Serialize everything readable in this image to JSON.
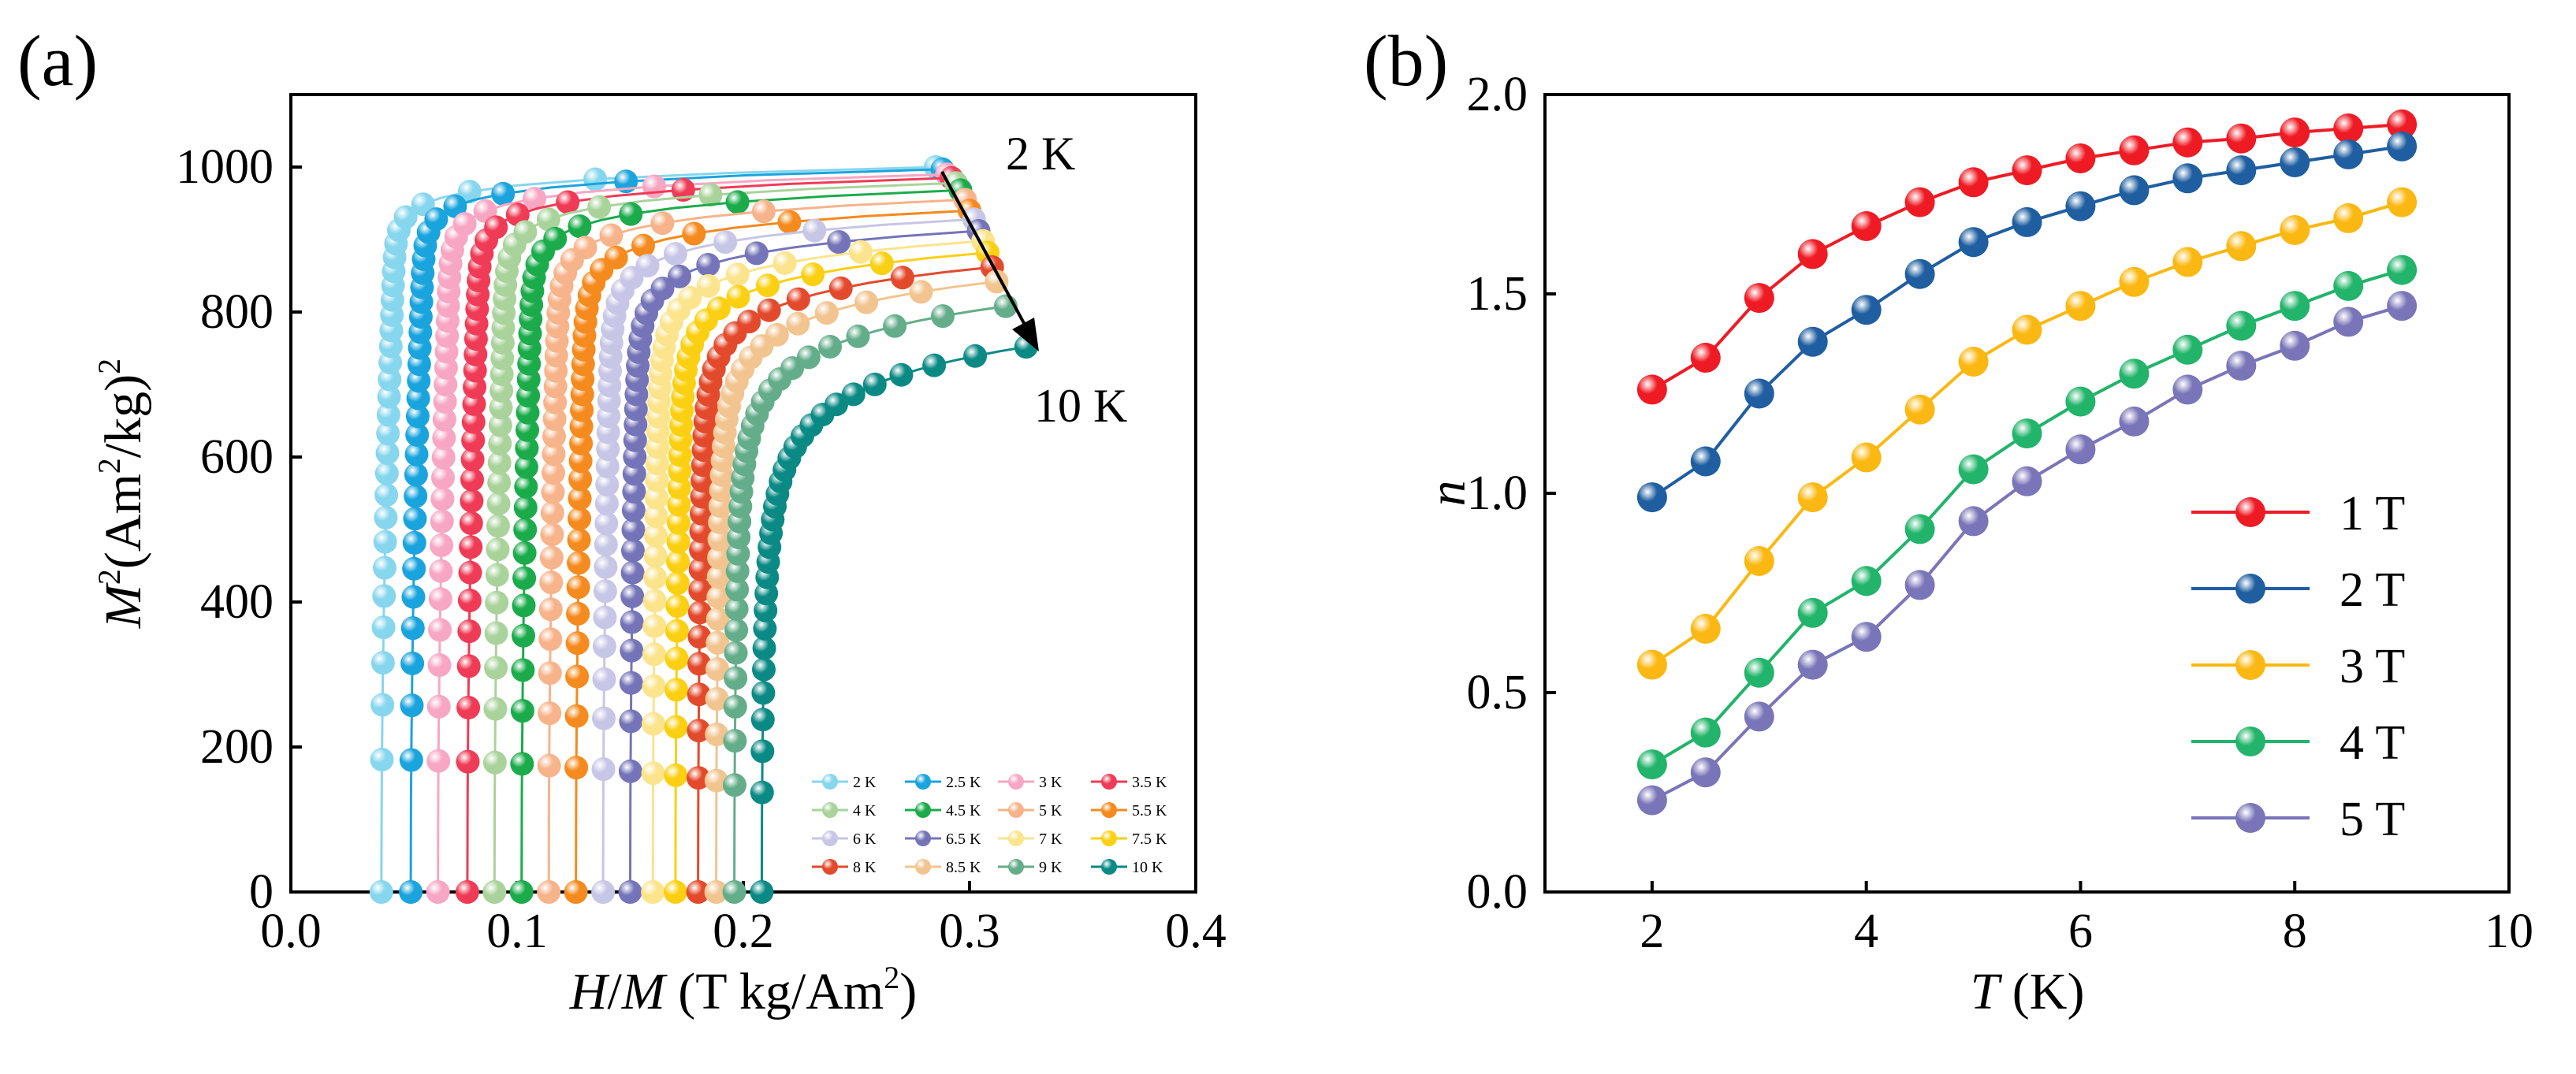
{
  "chart_data": [
    {
      "panel_label": "(a)",
      "type": "scatter",
      "xlabel": "H/M (T kg/Am²)",
      "xlabel_parts": [
        "H",
        "/",
        "M",
        " (T kg/Am",
        "2",
        ")"
      ],
      "ylabel": "M²(Am²/kg)²",
      "ylabel_parts": [
        "M",
        "2",
        "(Am",
        "2",
        "/kg)",
        "2"
      ],
      "xlim": [
        0.0,
        0.4
      ],
      "ylim": [
        0,
        1100
      ],
      "xticks": [
        "0.0",
        "0.1",
        "0.2",
        "0.3",
        "0.4"
      ],
      "yticks": [
        "0",
        "200",
        "400",
        "600",
        "800",
        "1000"
      ],
      "annotations": {
        "start": "2 K",
        "end": "10 K"
      },
      "legend": {
        "position": "bottom-right",
        "columns": 4,
        "entries": [
          "2 K",
          "2.5 K",
          "3 K",
          "3.5 K",
          "4 K",
          "4.5 K",
          "5 K",
          "5.5 K",
          "6 K",
          "6.5 K",
          "7 K",
          "7.5 K",
          "8 K",
          "8.5 K",
          "9 K",
          "10 K"
        ]
      },
      "series": [
        {
          "name": "2 K",
          "color": "#86d6ee",
          "intercept": 0.04,
          "end": [
            0.285,
            1000
          ],
          "knee": 1.0
        },
        {
          "name": "2.5 K",
          "color": "#1aa4dd",
          "intercept": 0.053,
          "end": [
            0.288,
            997
          ],
          "knee": 0.94
        },
        {
          "name": "3 K",
          "color": "#f7a6c4",
          "intercept": 0.065,
          "end": [
            0.29,
            990
          ],
          "knee": 0.88
        },
        {
          "name": "3.5 K",
          "color": "#ef3b56",
          "intercept": 0.078,
          "end": [
            0.292,
            985
          ],
          "knee": 0.82
        },
        {
          "name": "4 K",
          "color": "#a9d39b",
          "intercept": 0.09,
          "end": [
            0.294,
            978
          ],
          "knee": 0.76
        },
        {
          "name": "4.5 K",
          "color": "#1bab4b",
          "intercept": 0.102,
          "end": [
            0.296,
            968
          ],
          "knee": 0.7
        },
        {
          "name": "5 K",
          "color": "#f7b38a",
          "intercept": 0.114,
          "end": [
            0.298,
            955
          ],
          "knee": 0.64
        },
        {
          "name": "5.5 K",
          "color": "#f58a1e",
          "intercept": 0.126,
          "end": [
            0.3,
            940
          ],
          "knee": 0.58
        },
        {
          "name": "6 K",
          "color": "#c7c6e6",
          "intercept": 0.138,
          "end": [
            0.302,
            928
          ],
          "knee": 0.52
        },
        {
          "name": "6.5 K",
          "color": "#7574b8",
          "intercept": 0.15,
          "end": [
            0.304,
            912
          ],
          "knee": 0.46
        },
        {
          "name": "7 K",
          "color": "#fbe48c",
          "intercept": 0.16,
          "end": [
            0.306,
            898
          ],
          "knee": 0.4
        },
        {
          "name": "7.5 K",
          "color": "#fbd013",
          "intercept": 0.17,
          "end": [
            0.308,
            882
          ],
          "knee": 0.34
        },
        {
          "name": "8 K",
          "color": "#e34a2c",
          "intercept": 0.18,
          "end": [
            0.31,
            862
          ],
          "knee": 0.28
        },
        {
          "name": "8.5 K",
          "color": "#f2c48f",
          "intercept": 0.188,
          "end": [
            0.312,
            842
          ],
          "knee": 0.22
        },
        {
          "name": "9 K",
          "color": "#64ad8a",
          "intercept": 0.196,
          "end": [
            0.316,
            808
          ],
          "knee": 0.16
        },
        {
          "name": "10 K",
          "color": "#0b8a85",
          "intercept": 0.208,
          "end": [
            0.325,
            752
          ],
          "knee": 0.1
        }
      ]
    },
    {
      "panel_label": "(b)",
      "type": "line",
      "xlabel": "T (K)",
      "xlabel_parts": [
        "T",
        " (K)"
      ],
      "ylabel": "n",
      "xlim": [
        1,
        10
      ],
      "ylim": [
        0.0,
        2.0
      ],
      "xticks": [
        "2",
        "4",
        "6",
        "8",
        "10"
      ],
      "yticks": [
        "0.0",
        "0.5",
        "1.0",
        "1.5",
        "2.0"
      ],
      "x": [
        2,
        2.5,
        3,
        3.5,
        4,
        4.5,
        5,
        5.5,
        6,
        6.5,
        7,
        7.5,
        8,
        8.5,
        9
      ],
      "legend": {
        "position": "bottom-right"
      },
      "series": [
        {
          "name": "1 T",
          "color": "#ef1b24",
          "values": [
            1.26,
            1.34,
            1.49,
            1.6,
            1.67,
            1.73,
            1.78,
            1.81,
            1.84,
            1.86,
            1.88,
            1.89,
            1.905,
            1.915,
            1.925
          ]
        },
        {
          "name": "2 T",
          "color": "#1f5ea0",
          "values": [
            0.99,
            1.08,
            1.25,
            1.38,
            1.46,
            1.55,
            1.63,
            1.68,
            1.72,
            1.76,
            1.79,
            1.81,
            1.83,
            1.85,
            1.87
          ]
        },
        {
          "name": "3 T",
          "color": "#fbb812",
          "values": [
            0.57,
            0.66,
            0.83,
            0.99,
            1.09,
            1.21,
            1.33,
            1.41,
            1.47,
            1.53,
            1.58,
            1.62,
            1.66,
            1.69,
            1.73
          ]
        },
        {
          "name": "4 T",
          "color": "#22b46a",
          "values": [
            0.32,
            0.4,
            0.55,
            0.7,
            0.78,
            0.91,
            1.06,
            1.15,
            1.23,
            1.3,
            1.36,
            1.42,
            1.47,
            1.52,
            1.56
          ]
        },
        {
          "name": "5 T",
          "color": "#7a75b8",
          "values": [
            0.23,
            0.3,
            0.44,
            0.57,
            0.64,
            0.77,
            0.93,
            1.03,
            1.11,
            1.18,
            1.26,
            1.32,
            1.37,
            1.43,
            1.47
          ]
        }
      ]
    }
  ]
}
